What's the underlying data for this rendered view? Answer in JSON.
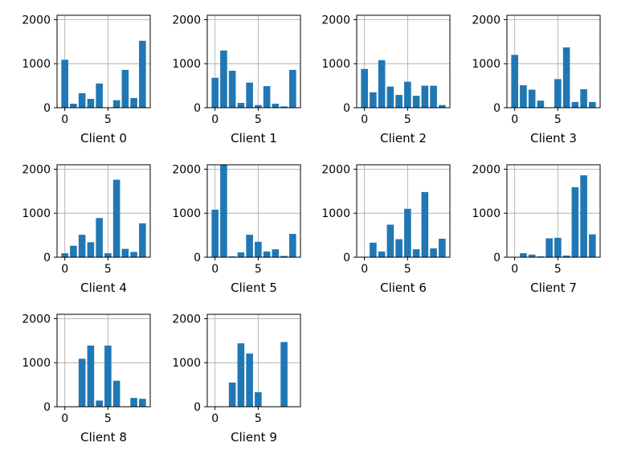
{
  "chart_data": [
    {
      "type": "bar",
      "xlabel": "Client 0",
      "x": [
        0,
        1,
        2,
        3,
        4,
        5,
        6,
        7,
        8,
        9
      ],
      "values": [
        1090,
        90,
        330,
        200,
        550,
        0,
        170,
        860,
        220,
        1520
      ],
      "ylim": [
        0,
        2100
      ],
      "yticks": [
        0,
        1000,
        2000
      ],
      "xticks": [
        0,
        5
      ],
      "grid": true,
      "color": "#1f77b4"
    },
    {
      "type": "bar",
      "xlabel": "Client 1",
      "x": [
        0,
        1,
        2,
        3,
        4,
        5,
        6,
        7,
        8,
        9
      ],
      "values": [
        680,
        1300,
        840,
        110,
        570,
        60,
        490,
        90,
        30,
        860
      ],
      "ylim": [
        0,
        2100
      ],
      "yticks": [
        0,
        1000,
        2000
      ],
      "xticks": [
        0,
        5
      ],
      "grid": true,
      "color": "#1f77b4"
    },
    {
      "type": "bar",
      "xlabel": "Client 2",
      "x": [
        0,
        1,
        2,
        3,
        4,
        5,
        6,
        7,
        8,
        9
      ],
      "values": [
        880,
        350,
        1080,
        480,
        290,
        590,
        270,
        500,
        500,
        60
      ],
      "ylim": [
        0,
        2100
      ],
      "yticks": [
        0,
        1000,
        2000
      ],
      "xticks": [
        0,
        5
      ],
      "grid": true,
      "color": "#1f77b4"
    },
    {
      "type": "bar",
      "xlabel": "Client 3",
      "x": [
        0,
        1,
        2,
        3,
        4,
        5,
        6,
        7,
        8,
        9
      ],
      "values": [
        1200,
        510,
        410,
        160,
        0,
        650,
        1370,
        130,
        420,
        130
      ],
      "ylim": [
        0,
        2100
      ],
      "yticks": [
        0,
        1000,
        2000
      ],
      "xticks": [
        0,
        5
      ],
      "grid": true,
      "color": "#1f77b4"
    },
    {
      "type": "bar",
      "xlabel": "Client 4",
      "x": [
        0,
        1,
        2,
        3,
        4,
        5,
        6,
        7,
        8,
        9
      ],
      "values": [
        90,
        260,
        510,
        340,
        890,
        90,
        1760,
        190,
        120,
        770
      ],
      "ylim": [
        0,
        2100
      ],
      "yticks": [
        0,
        1000,
        2000
      ],
      "xticks": [
        0,
        5
      ],
      "grid": true,
      "color": "#1f77b4"
    },
    {
      "type": "bar",
      "xlabel": "Client 5",
      "x": [
        0,
        1,
        2,
        3,
        4,
        5,
        6,
        7,
        8,
        9
      ],
      "values": [
        1080,
        2100,
        20,
        110,
        510,
        350,
        130,
        180,
        30,
        530
      ],
      "ylim": [
        0,
        2100
      ],
      "yticks": [
        0,
        1000,
        2000
      ],
      "xticks": [
        0,
        5
      ],
      "grid": true,
      "color": "#1f77b4"
    },
    {
      "type": "bar",
      "xlabel": "Client 6",
      "x": [
        0,
        1,
        2,
        3,
        4,
        5,
        6,
        7,
        8,
        9
      ],
      "values": [
        10,
        330,
        130,
        740,
        410,
        1100,
        180,
        1480,
        200,
        420
      ],
      "ylim": [
        0,
        2100
      ],
      "yticks": [
        0,
        1000,
        2000
      ],
      "xticks": [
        0,
        5
      ],
      "grid": true,
      "color": "#1f77b4"
    },
    {
      "type": "bar",
      "xlabel": "Client 7",
      "x": [
        0,
        1,
        2,
        3,
        4,
        5,
        6,
        7,
        8,
        9
      ],
      "values": [
        0,
        90,
        60,
        20,
        430,
        440,
        40,
        1590,
        1860,
        520
      ],
      "ylim": [
        0,
        2100
      ],
      "yticks": [
        0,
        1000,
        2000
      ],
      "xticks": [
        0,
        5
      ],
      "grid": true,
      "color": "#1f77b4"
    },
    {
      "type": "bar",
      "xlabel": "Client 8",
      "x": [
        0,
        1,
        2,
        3,
        4,
        5,
        6,
        7,
        8,
        9
      ],
      "values": [
        0,
        0,
        1090,
        1390,
        140,
        1390,
        590,
        0,
        200,
        180
      ],
      "ylim": [
        0,
        2100
      ],
      "yticks": [
        0,
        1000,
        2000
      ],
      "xticks": [
        0,
        5
      ],
      "grid": true,
      "color": "#1f77b4"
    },
    {
      "type": "bar",
      "xlabel": "Client 9",
      "x": [
        0,
        1,
        2,
        3,
        4,
        5,
        6,
        7,
        8,
        9
      ],
      "values": [
        0,
        0,
        550,
        1440,
        1210,
        330,
        0,
        0,
        1470,
        0
      ],
      "ylim": [
        0,
        2100
      ],
      "yticks": [
        0,
        1000,
        2000
      ],
      "xticks": [
        0,
        5
      ],
      "grid": true,
      "color": "#1f77b4"
    }
  ]
}
